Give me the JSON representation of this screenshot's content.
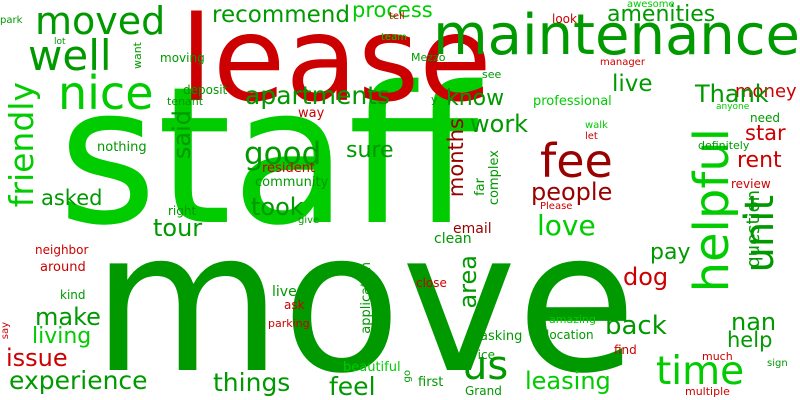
{
  "palette": {
    "bright_green": "#00cc00",
    "green": "#009900",
    "dark_green": "#007a00",
    "red": "#cc0000",
    "dark_red": "#990000"
  },
  "words": [
    {
      "text": "staff",
      "color": "bright_green"
    },
    {
      "text": "move",
      "color": "green"
    },
    {
      "text": "lease",
      "color": "red"
    },
    {
      "text": "maintenance",
      "color": "green"
    },
    {
      "text": "moved",
      "color": "green"
    },
    {
      "text": "well",
      "color": "green"
    },
    {
      "text": "nice",
      "color": "bright_green"
    },
    {
      "text": "friendly",
      "color": "bright_green"
    },
    {
      "text": "recommend",
      "color": "green"
    },
    {
      "text": "process",
      "color": "bright_green"
    },
    {
      "text": "work",
      "color": "green"
    },
    {
      "text": "amenities",
      "color": "green"
    },
    {
      "text": "money",
      "color": "red"
    },
    {
      "text": "live",
      "color": "green"
    },
    {
      "text": "apartments",
      "color": "green"
    },
    {
      "text": "know",
      "color": "green"
    },
    {
      "text": "Thank",
      "color": "green"
    },
    {
      "text": "professional",
      "color": "bright_green"
    },
    {
      "text": "star",
      "color": "red"
    },
    {
      "text": "fee",
      "color": "dark_red"
    },
    {
      "text": "good",
      "color": "green"
    },
    {
      "text": "said",
      "color": "green"
    },
    {
      "text": "sure",
      "color": "green"
    },
    {
      "text": "months",
      "color": "dark_red"
    },
    {
      "text": "rent",
      "color": "red"
    },
    {
      "text": "people",
      "color": "dark_red"
    },
    {
      "text": "asked",
      "color": "green"
    },
    {
      "text": "took",
      "color": "green"
    },
    {
      "text": "tour",
      "color": "green"
    },
    {
      "text": "love",
      "color": "bright_green"
    },
    {
      "text": "unit",
      "color": "green"
    },
    {
      "text": "helpful",
      "color": "bright_green"
    },
    {
      "text": "question",
      "color": "green"
    },
    {
      "text": "pay",
      "color": "green"
    },
    {
      "text": "dog",
      "color": "red"
    },
    {
      "text": "area",
      "color": "green"
    },
    {
      "text": "make",
      "color": "green"
    },
    {
      "text": "back",
      "color": "green"
    },
    {
      "text": "living",
      "color": "bright_green"
    },
    {
      "text": "nan",
      "color": "green"
    },
    {
      "text": "help",
      "color": "green"
    },
    {
      "text": "issue",
      "color": "red"
    },
    {
      "text": "us",
      "color": "green"
    },
    {
      "text": "time",
      "color": "bright_green"
    },
    {
      "text": "experience",
      "color": "green"
    },
    {
      "text": "things",
      "color": "green"
    },
    {
      "text": "feel",
      "color": "green"
    },
    {
      "text": "leasing",
      "color": "bright_green"
    },
    {
      "text": "lived",
      "color": "green"
    },
    {
      "text": "community",
      "color": "green"
    },
    {
      "text": "resident",
      "color": "red"
    },
    {
      "text": "complex",
      "color": "green"
    },
    {
      "text": "far",
      "color": "green"
    },
    {
      "text": "email",
      "color": "dark_red"
    },
    {
      "text": "clean",
      "color": "green"
    },
    {
      "text": "neighbor",
      "color": "red"
    },
    {
      "text": "around",
      "color": "red"
    },
    {
      "text": "right",
      "color": "green"
    },
    {
      "text": "give",
      "color": "green"
    },
    {
      "text": "kind",
      "color": "green"
    },
    {
      "text": "say",
      "color": "red"
    },
    {
      "text": "parking",
      "color": "red"
    },
    {
      "text": "ask",
      "color": "red"
    },
    {
      "text": "close",
      "color": "red"
    },
    {
      "text": "application",
      "color": "green"
    },
    {
      "text": "asking",
      "color": "green"
    },
    {
      "text": "beautiful",
      "color": "bright_green"
    },
    {
      "text": "service",
      "color": "green"
    },
    {
      "text": "go",
      "color": "green"
    },
    {
      "text": "first",
      "color": "green"
    },
    {
      "text": "Grand",
      "color": "green"
    },
    {
      "text": "amazing",
      "color": "bright_green"
    },
    {
      "text": "location",
      "color": "green"
    },
    {
      "text": "find",
      "color": "red"
    },
    {
      "text": "much",
      "color": "red"
    },
    {
      "text": "multiple",
      "color": "red"
    },
    {
      "text": "sign",
      "color": "green"
    },
    {
      "text": "nothing",
      "color": "green"
    },
    {
      "text": "deposit",
      "color": "green"
    },
    {
      "text": "tenant",
      "color": "green"
    },
    {
      "text": "way",
      "color": "red"
    },
    {
      "text": "y",
      "color": "green"
    },
    {
      "text": "walk",
      "color": "bright_green"
    },
    {
      "text": "let",
      "color": "red"
    },
    {
      "text": "definitely",
      "color": "green"
    },
    {
      "text": "review",
      "color": "red"
    },
    {
      "text": "Please",
      "color": "red"
    },
    {
      "text": "need",
      "color": "green"
    },
    {
      "text": "anyone",
      "color": "bright_green"
    },
    {
      "text": "manager",
      "color": "red"
    },
    {
      "text": "see",
      "color": "green"
    },
    {
      "text": "awesome",
      "color": "bright_green"
    },
    {
      "text": "tell",
      "color": "red"
    },
    {
      "text": "team",
      "color": "bright_green"
    },
    {
      "text": "Mezzo",
      "color": "green"
    },
    {
      "text": "look",
      "color": "red"
    },
    {
      "text": "park",
      "color": "green"
    },
    {
      "text": "lot",
      "color": "green"
    },
    {
      "text": "want",
      "color": "green"
    },
    {
      "text": "moving",
      "color": "green"
    }
  ]
}
